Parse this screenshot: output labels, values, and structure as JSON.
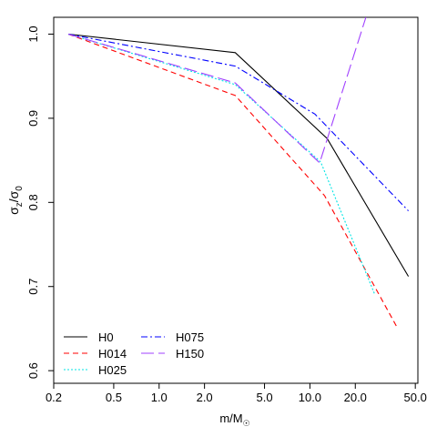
{
  "chart_data": {
    "type": "line",
    "xscale": "log",
    "xlabel": "m/M",
    "xlabel_sub": "☉",
    "ylabel_sigma": "σ",
    "ylabel_sub1": "z",
    "ylabel_slash": "/σ",
    "ylabel_sub2": "0",
    "xlim": [
      0.2,
      52
    ],
    "ylim": [
      0.585,
      1.02
    ],
    "xticks": [
      0.2,
      0.5,
      1.0,
      2.0,
      5.0,
      10.0,
      20.0,
      50.0
    ],
    "xticklabels": [
      "0.2",
      "0.5",
      "1.0",
      "2.0",
      "5.0",
      "10.0",
      "20.0",
      "50.0"
    ],
    "yticks": [
      0.6,
      0.7,
      0.8,
      0.9,
      1.0
    ],
    "yticklabels": [
      "0.6",
      "0.7",
      "0.8",
      "0.9",
      "1.0"
    ],
    "grid": false,
    "legend_position": "bottom-left",
    "series": [
      {
        "name": "H0",
        "color": "#000000",
        "dash": "",
        "x": [
          0.25,
          3.2,
          13.0,
          45.0
        ],
        "y": [
          1.0,
          0.978,
          0.876,
          0.712
        ]
      },
      {
        "name": "H014",
        "color": "#ff0000",
        "dash": "6,4",
        "x": [
          0.25,
          3.2,
          12.5,
          38.0
        ],
        "y": [
          1.0,
          0.927,
          0.808,
          0.651
        ]
      },
      {
        "name": "H025",
        "color": "#00e5e5",
        "dash": "2,2",
        "x": [
          0.25,
          3.2,
          11.8,
          27.0
        ],
        "y": [
          1.0,
          0.94,
          0.848,
          0.69
        ]
      },
      {
        "name": "H075",
        "color": "#0000ff",
        "dash": "7,3,2,3",
        "x": [
          0.25,
          3.2,
          10.8,
          45.0
        ],
        "y": [
          1.0,
          0.962,
          0.905,
          0.79
        ]
      },
      {
        "name": "H150",
        "color": "#a040ff",
        "dash": "14,5",
        "x": [
          0.25,
          3.2,
          11.6,
          23.5
        ],
        "y": [
          1.0,
          0.942,
          0.847,
          1.02
        ]
      }
    ]
  }
}
